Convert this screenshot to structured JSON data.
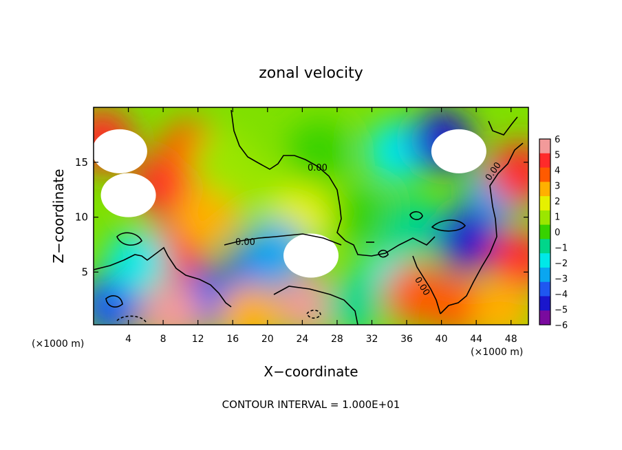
{
  "chart_data": {
    "type": "heatmap",
    "title": "zonal velocity",
    "xlabel": "X−coordinate",
    "ylabel": "Z−coordinate",
    "x_unit_left": "(×1000 m)",
    "x_unit_right": "(×1000 m)",
    "x_ticks": [
      4,
      8,
      12,
      16,
      20,
      24,
      28,
      32,
      36,
      40,
      44,
      48
    ],
    "y_ticks": [
      5,
      10,
      15
    ],
    "xlim": [
      0,
      50
    ],
    "ylim": [
      0.2,
      20
    ],
    "colorbar": {
      "ticks": [
        6,
        5,
        4,
        3,
        2,
        1,
        0,
        -1,
        -2,
        -3,
        -4,
        -5,
        -6
      ],
      "tick_labels": [
        "6",
        "5",
        "4",
        "3",
        "2",
        "1",
        "0",
        "−1",
        "−2",
        "−3",
        "−4",
        "−5",
        "−6"
      ],
      "range": [
        -6,
        6
      ],
      "colors": [
        "#f29a9a",
        "#ff2a2a",
        "#ff5a00",
        "#ffb000",
        "#e6f000",
        "#9be600",
        "#37d200",
        "#00d68a",
        "#00e8e8",
        "#0aa6f0",
        "#1f57f0",
        "#1a16cc",
        "#7a0a9e"
      ]
    },
    "contour_labels": [
      "0.00",
      "0.00",
      "0.00",
      "0.00"
    ],
    "footnote": "CONTOUR INTERVAL = 1.000E+01",
    "field_points": [
      {
        "x": 3,
        "z": 16,
        "v": 8
      },
      {
        "x": 4,
        "z": 12,
        "v": 7
      },
      {
        "x": 1,
        "z": 17,
        "v": 5
      },
      {
        "x": 8,
        "z": 13,
        "v": 5
      },
      {
        "x": 9.5,
        "z": 7,
        "v": 5
      },
      {
        "x": 11,
        "z": 16,
        "v": 4
      },
      {
        "x": 13,
        "z": 10,
        "v": 3
      },
      {
        "x": 15,
        "z": 15,
        "v": 1.5
      },
      {
        "x": 20,
        "z": 12,
        "v": 1
      },
      {
        "x": 24,
        "z": 10,
        "v": 2
      },
      {
        "x": 26,
        "z": 16,
        "v": 0
      },
      {
        "x": 31,
        "z": 10,
        "v": 0
      },
      {
        "x": 25,
        "z": 6.5,
        "v": 7
      },
      {
        "x": 25,
        "z": 2,
        "v": 6
      },
      {
        "x": 19,
        "z": 5.5,
        "v": -3.5
      },
      {
        "x": 21,
        "z": 6.8,
        "v": -3
      },
      {
        "x": 13,
        "z": 2.5,
        "v": -3.5
      },
      {
        "x": 2,
        "z": 2,
        "v": -4
      },
      {
        "x": 5,
        "z": 6,
        "v": -2
      },
      {
        "x": 9,
        "z": 1.2,
        "v": 6
      },
      {
        "x": 18,
        "z": 1,
        "v": 3
      },
      {
        "x": 35,
        "z": 16,
        "v": -2
      },
      {
        "x": 40,
        "z": 17,
        "v": -4.5
      },
      {
        "x": 42,
        "z": 16,
        "v": 8
      },
      {
        "x": 46,
        "z": 12,
        "v": -2.5
      },
      {
        "x": 37,
        "z": 9,
        "v": -1
      },
      {
        "x": 34,
        "z": 4,
        "v": -1.5
      },
      {
        "x": 37,
        "z": 3,
        "v": 4
      },
      {
        "x": 42,
        "z": 2,
        "v": 4
      },
      {
        "x": 43,
        "z": 8,
        "v": -4.5
      },
      {
        "x": 49,
        "z": 14,
        "v": 5
      },
      {
        "x": 49,
        "z": 6,
        "v": 5
      },
      {
        "x": 30,
        "z": 2,
        "v": -0.5
      },
      {
        "x": 47,
        "z": 1.5,
        "v": 3
      }
    ]
  }
}
